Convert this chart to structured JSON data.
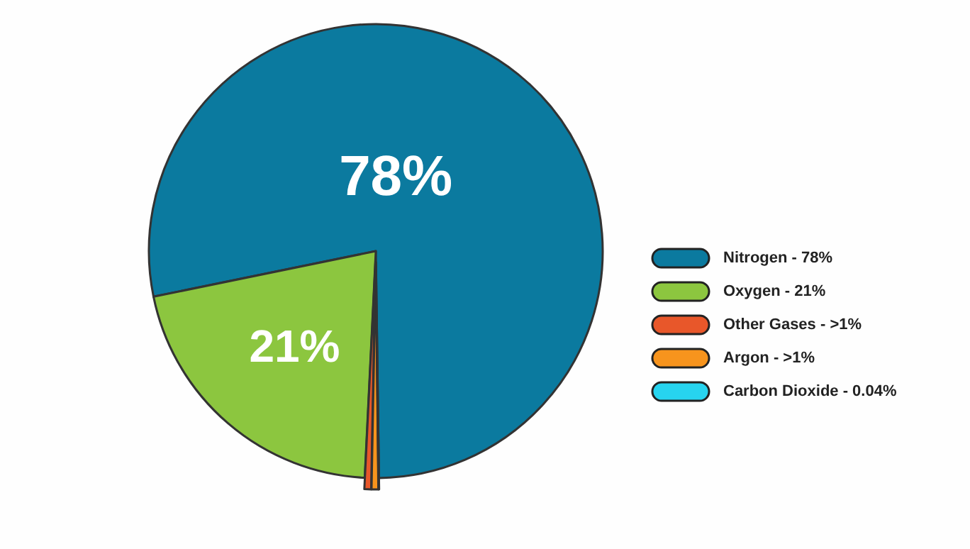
{
  "chart_data": {
    "type": "pie",
    "categories": [
      "Nitrogen - 78%",
      "Oxygen - 21%",
      "Other Gases - >1%",
      "Argon - >1%",
      "Carbon Dioxide - 0.04%"
    ],
    "values": [
      78,
      21,
      0.48,
      0.48,
      0.04
    ],
    "colors": [
      "#0b7a9f",
      "#8cc63f",
      "#e8572a",
      "#f7941d",
      "#27d4ef"
    ],
    "value_labels": [
      "78%",
      "21%",
      null,
      null,
      null
    ],
    "legend": "right"
  }
}
